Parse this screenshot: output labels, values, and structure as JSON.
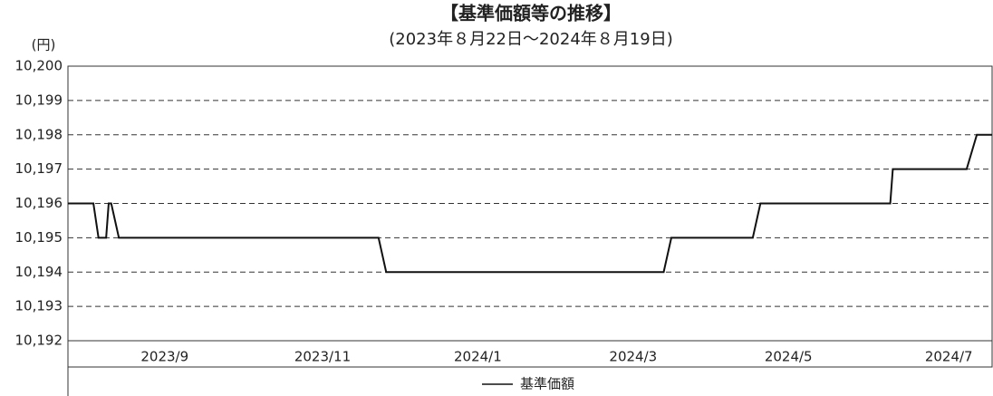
{
  "chart_data": {
    "type": "line",
    "title": "【基準価額等の推移】",
    "subtitle": "(2023年８月22日～2024年８月19日)",
    "y_unit": "(円)",
    "x": [
      0,
      10,
      12,
      15,
      16,
      17,
      20,
      122,
      125,
      234,
      237,
      269,
      272,
      323,
      324,
      353,
      357,
      363
    ],
    "series": [
      {
        "name": "基準価額",
        "color": "#111111",
        "values": [
          10196,
          10196,
          10195,
          10195,
          10196,
          10196,
          10195,
          10195,
          10194,
          10194,
          10195,
          10195,
          10196,
          10196,
          10197,
          10197,
          10198,
          10198
        ]
      }
    ],
    "xlim": [
      0,
      363
    ],
    "xticks": [
      {
        "value": 38,
        "label": "2023/9"
      },
      {
        "value": 100,
        "label": "2023/11"
      },
      {
        "value": 161,
        "label": "2024/1"
      },
      {
        "value": 222,
        "label": "2024/3"
      },
      {
        "value": 283,
        "label": "2024/5"
      },
      {
        "value": 346,
        "label": "2024/7"
      }
    ],
    "ylim": [
      10192,
      10200
    ],
    "yticks": [
      {
        "value": 10192,
        "label": "10,192"
      },
      {
        "value": 10193,
        "label": "10,193"
      },
      {
        "value": 10194,
        "label": "10,194"
      },
      {
        "value": 10195,
        "label": "10,195"
      },
      {
        "value": 10196,
        "label": "10,196"
      },
      {
        "value": 10197,
        "label": "10,197"
      },
      {
        "value": 10198,
        "label": "10,198"
      },
      {
        "value": 10199,
        "label": "10,199"
      },
      {
        "value": 10200,
        "label": "10,200"
      }
    ],
    "grid": true
  }
}
